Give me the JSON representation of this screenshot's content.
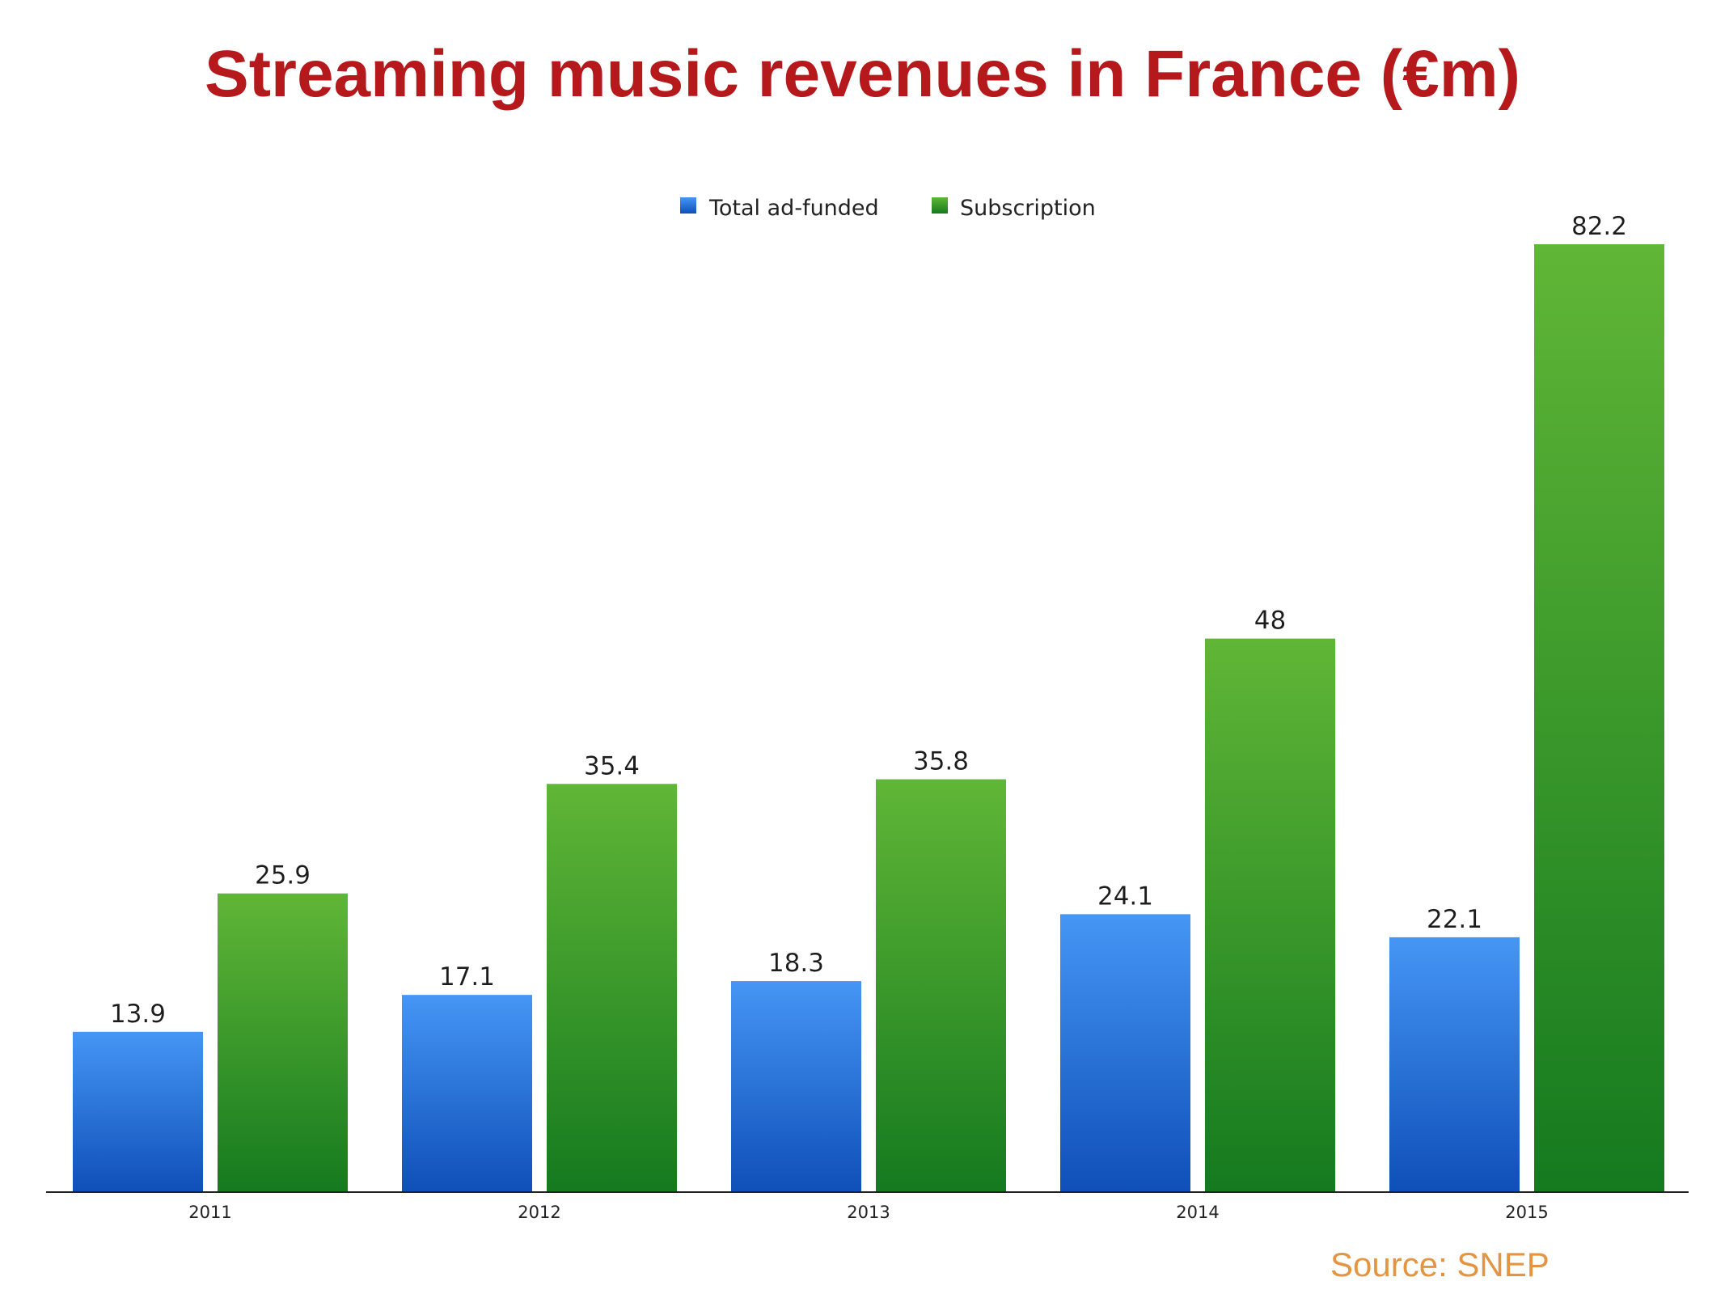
{
  "chart_data": {
    "type": "bar",
    "title": "Streaming music revenues in France (€m)",
    "categories": [
      "2011",
      "2012",
      "2013",
      "2014",
      "2015"
    ],
    "series": [
      {
        "name": "Total ad-funded",
        "values": [
          13.9,
          17.1,
          18.3,
          24.1,
          22.1
        ],
        "color": "#2f7fe0"
      },
      {
        "name": "Subscription",
        "values": [
          25.9,
          35.4,
          35.8,
          48,
          82.2
        ],
        "color": "#2f9b2a"
      }
    ],
    "data_labels": [
      [
        "13.9",
        "17.1",
        "18.3",
        "24.1",
        "22.1"
      ],
      [
        "25.9",
        "35.4",
        "35.8",
        "48",
        "82.2"
      ]
    ],
    "ylim": [
      0,
      82.2
    ],
    "grid": false,
    "legend_position": "top-center",
    "xlabel": "",
    "ylabel": ""
  },
  "source": "Source: SNEP",
  "colors": {
    "title": "#b5191b",
    "source": "#e49542",
    "ad_top": "#4596f5",
    "ad_bottom": "#0f4fb8",
    "sub_top": "#60b636",
    "sub_bottom": "#157a1f"
  }
}
